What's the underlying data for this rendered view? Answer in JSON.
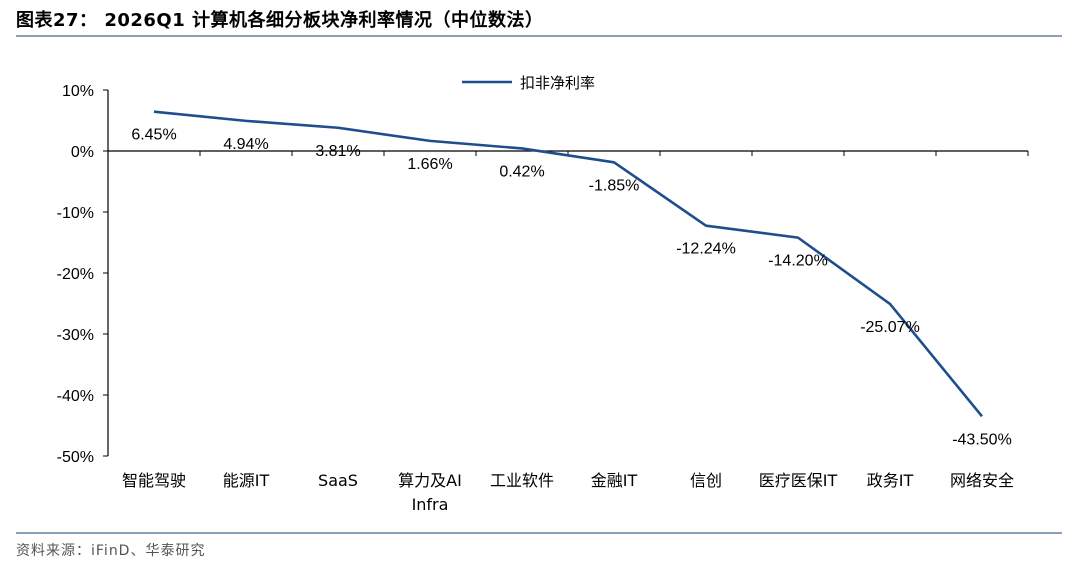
{
  "header": {
    "title": "图表27：  2026Q1 计算机各细分板块净利率情况（中位数法）"
  },
  "footer": {
    "source": "资料来源：iFinD、华泰研究"
  },
  "chart_data": {
    "type": "line",
    "title": "",
    "xlabel": "",
    "ylabel": "",
    "categories": [
      "智能驾驶",
      "能源IT",
      "SaaS",
      "算力及AI Infra",
      "工业软件",
      "金融IT",
      "信创",
      "医疗医保IT",
      "政务IT",
      "网络安全"
    ],
    "category_lines": [
      [
        "智能驾驶"
      ],
      [
        "能源IT"
      ],
      [
        "SaaS"
      ],
      [
        "算力及AI",
        "Infra"
      ],
      [
        "工业软件"
      ],
      [
        "金融IT"
      ],
      [
        "信创"
      ],
      [
        "医疗医保IT"
      ],
      [
        "政务IT"
      ],
      [
        "网络安全"
      ]
    ],
    "series": [
      {
        "name": "扣非净利率",
        "values": [
          6.45,
          4.94,
          3.81,
          1.66,
          0.42,
          -1.85,
          -12.24,
          -14.2,
          -25.07,
          -43.5
        ],
        "labels": [
          "6.45%",
          "4.94%",
          "3.81%",
          "1.66%",
          "0.42%",
          "-1.85%",
          "-12.24%",
          "-14.20%",
          "-25.07%",
          "-43.50%"
        ],
        "color": "#1f4e8c"
      }
    ],
    "ylim": [
      -50,
      10
    ],
    "yticks": [
      10,
      0,
      -10,
      -20,
      -30,
      -40,
      -50
    ],
    "ytick_labels": [
      "10%",
      "0%",
      "-10%",
      "-20%",
      "-30%",
      "-40%",
      "-50%"
    ],
    "legend_position": "top-center",
    "grid": false
  }
}
